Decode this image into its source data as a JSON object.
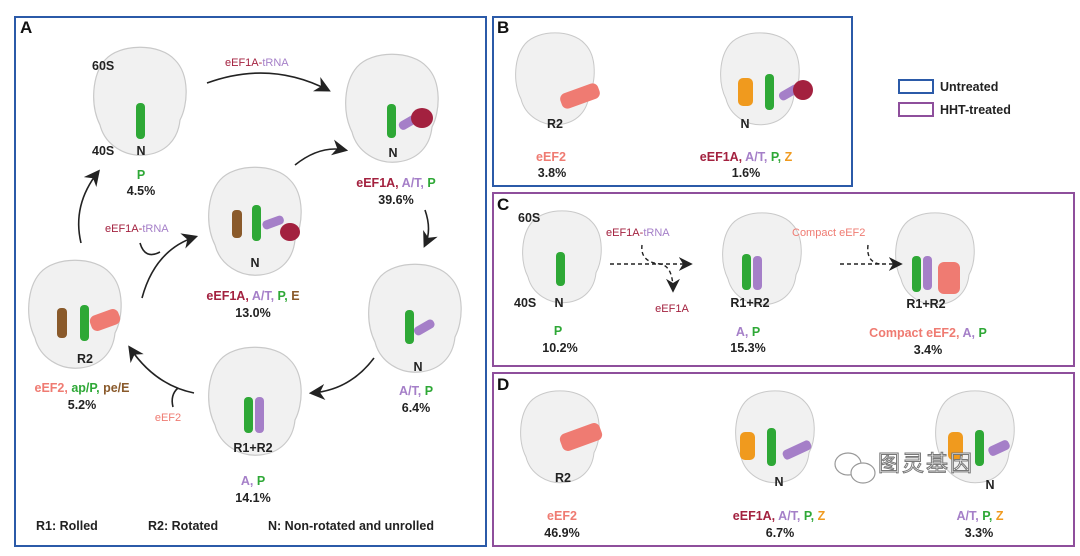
{
  "colors": {
    "untreated_border": "#2b5aa8",
    "hht_border": "#8e4f9c",
    "eEF1A": "#a3213f",
    "A_T_tRNA": "#a57fc8",
    "P_tRNA": "#2ea836",
    "E_tRNA": "#8a5a2b",
    "eEF2": "#ef7b72",
    "Z_tRNA": "#f09a1e"
  },
  "panelA": {
    "label": "A",
    "state1": {
      "top": "60S",
      "bottom": "40S",
      "conf": "N",
      "sites": [
        "P"
      ],
      "pct": "4.5%"
    },
    "state2": {
      "conf": "N",
      "sites": [
        "eEF1A,",
        "A/T,",
        "P"
      ],
      "pct": "39.6%"
    },
    "state3": {
      "conf": "N",
      "sites": [
        "A/T,",
        "P"
      ],
      "pct": "6.4%"
    },
    "state4": {
      "conf": "R1+R2",
      "sites": [
        "A,",
        "P"
      ],
      "pct": "14.1%"
    },
    "state5": {
      "conf": "R2",
      "sites": [
        "eEF2,",
        "ap/P,",
        "pe/E"
      ],
      "pct": "5.2%"
    },
    "state6": {
      "conf": "N",
      "sites": [
        "eEF1A,",
        "A/T,",
        "P,",
        "E"
      ],
      "pct": "13.0%"
    },
    "arrow_top": {
      "a": "eEF1A",
      "b": "-",
      "c": "tRNA"
    },
    "arrow_left": {
      "a": "eEF1A",
      "b": "-",
      "c": "tRNA"
    },
    "arrow_eef2": "eEF2",
    "legend": [
      "R1: Rolled",
      "R2: Rotated",
      "N: Non-rotated and unrolled"
    ]
  },
  "panelB": {
    "label": "B",
    "s1": {
      "conf": "R2",
      "sites": [
        "eEF2"
      ],
      "pct": "3.8%"
    },
    "s2": {
      "conf": "N",
      "sites": [
        "eEF1A,",
        "A/T,",
        "P,",
        "Z"
      ],
      "pct": "1.6%"
    }
  },
  "legend": {
    "untreated": "Untreated",
    "hht": "HHT-treated"
  },
  "panelC": {
    "label": "C",
    "s1": {
      "top": "60S",
      "bottom": "40S",
      "conf": "N",
      "sites": [
        "P"
      ],
      "pct": "10.2%"
    },
    "arrow1": {
      "a": "eEF1A",
      "b": "-",
      "c": "tRNA",
      "out": "eEF1A"
    },
    "s2": {
      "conf": "R1+R2",
      "sites": [
        "A,",
        "P"
      ],
      "pct": "15.3%"
    },
    "arrow2": "Compact eEF2",
    "s3": {
      "conf": "R1+R2",
      "sites": [
        "Compact eEF2,",
        "A,",
        "P"
      ],
      "pct": "3.4%"
    }
  },
  "panelD": {
    "label": "D",
    "s1": {
      "conf": "R2",
      "sites": [
        "eEF2"
      ],
      "pct": "46.9%"
    },
    "s2": {
      "conf": "N",
      "sites": [
        "eEF1A,",
        "A/T,",
        "P,",
        "Z"
      ],
      "pct": "6.7%"
    },
    "s3": {
      "conf": "N",
      "sites": [
        "A/T,",
        "P,",
        "Z"
      ],
      "pct": "3.3%"
    }
  },
  "watermark": "图灵基因"
}
